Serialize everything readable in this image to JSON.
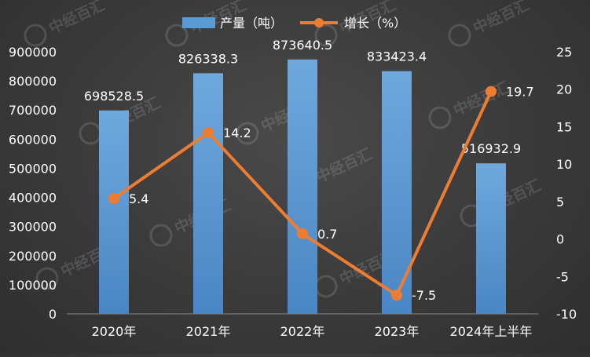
{
  "chart_data": {
    "type": "bar+line",
    "categories": [
      "2020年",
      "2021年",
      "2022年",
      "2023年",
      "2024年上半年"
    ],
    "series": [
      {
        "name": "产量（吨）",
        "type": "bar",
        "axis": "left",
        "values": [
          698528.5,
          826338.3,
          873640.5,
          833423.4,
          516932.9
        ],
        "labels": [
          "698528.5",
          "826338.3",
          "873640.5",
          "833423.4",
          "516932.9"
        ],
        "color": "#5b9bd5"
      },
      {
        "name": "增长（%）",
        "type": "line",
        "axis": "right",
        "values": [
          5.4,
          14.2,
          0.7,
          -7.5,
          19.7
        ],
        "labels": [
          "5.4",
          "14.2",
          "0.7",
          "-7.5",
          "19.7"
        ],
        "color": "#ed7d31"
      }
    ],
    "y_left": {
      "min": 0,
      "max": 900000,
      "ticks": [
        "0",
        "100000",
        "200000",
        "300000",
        "400000",
        "500000",
        "600000",
        "700000",
        "800000",
        "900000"
      ]
    },
    "y_right": {
      "min": -10,
      "max": 25,
      "ticks": [
        "-10",
        "-5",
        "0",
        "5",
        "10",
        "15",
        "20",
        "25"
      ]
    },
    "grid": false,
    "legend": "top-center",
    "watermark": "中经百汇"
  }
}
